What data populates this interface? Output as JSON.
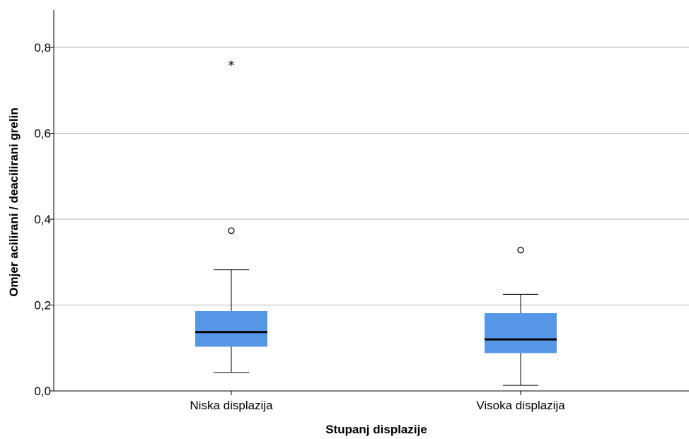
{
  "chart_data": {
    "type": "boxplot",
    "xlabel": "Stupanj displazije",
    "ylabel": "Omjer acilirani / deacilirani grelin",
    "ylim": [
      0,
      0.88
    ],
    "yticks": [
      {
        "value": 0.0,
        "label": "0,0"
      },
      {
        "value": 0.2,
        "label": "0,2"
      },
      {
        "value": 0.4,
        "label": "0,4"
      },
      {
        "value": 0.6,
        "label": "0,6"
      },
      {
        "value": 0.8,
        "label": "0,8"
      }
    ],
    "grid": true,
    "box_color": "#5596e6",
    "categories": [
      "Niska displazija",
      "Visoka displazija"
    ],
    "boxes": [
      {
        "category": "Niska displazija",
        "whisker_low": 0.043,
        "q1": 0.103,
        "median": 0.137,
        "q3": 0.186,
        "whisker_high": 0.282,
        "outliers": [
          0.373
        ],
        "extremes": [
          0.763
        ]
      },
      {
        "category": "Visoka displazija",
        "whisker_low": 0.013,
        "q1": 0.088,
        "median": 0.12,
        "q3": 0.181,
        "whisker_high": 0.225,
        "outliers": [
          0.328
        ],
        "extremes": []
      }
    ]
  }
}
